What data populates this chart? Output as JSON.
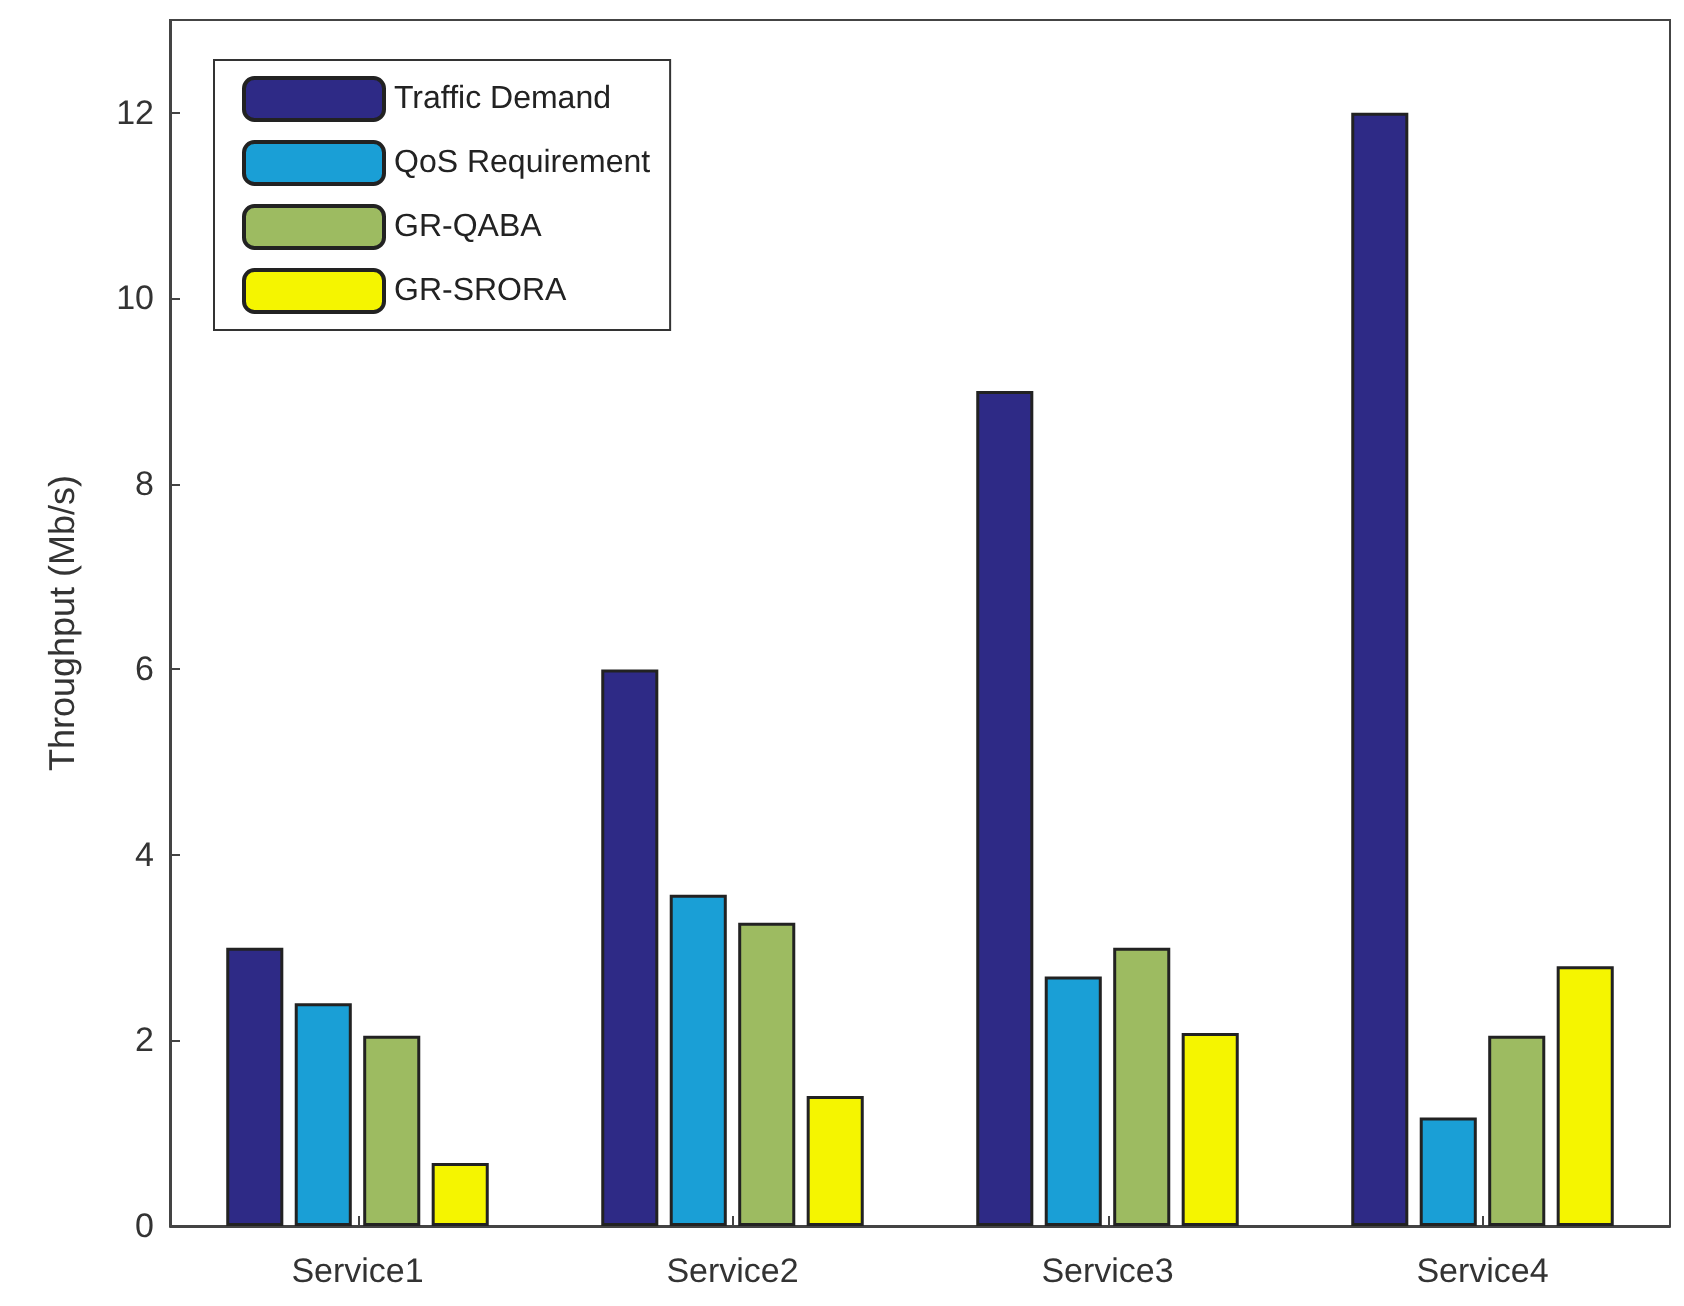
{
  "chart_data": {
    "type": "bar",
    "ylabel": "Throughput (Mb/s)",
    "categories": [
      "Service1",
      "Service2",
      "Service3",
      "Service4"
    ],
    "series": [
      {
        "name": "Traffic Demand",
        "color": "#2e2a86",
        "values": [
          3,
          6,
          9,
          12
        ]
      },
      {
        "name": "QoS Requirement",
        "color": "#1a9fd6",
        "values": [
          2.4,
          3.57,
          2.69,
          1.17
        ]
      },
      {
        "name": "GR-QABA",
        "color": "#9dbb61",
        "values": [
          2.05,
          3.27,
          3.0,
          2.05
        ]
      },
      {
        "name": "GR-SRORA",
        "color": "#f5f500",
        "values": [
          0.68,
          1.4,
          2.08,
          2.8
        ]
      }
    ],
    "ylim": [
      0,
      13
    ],
    "yticks": [
      0,
      2,
      4,
      6,
      8,
      10,
      12
    ],
    "grid": false,
    "legend": "top left"
  }
}
